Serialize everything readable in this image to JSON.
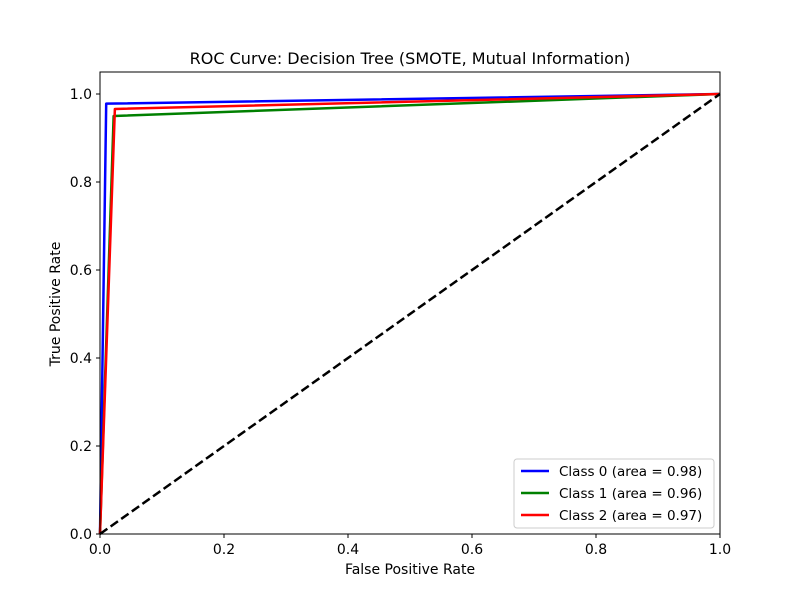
{
  "chart_data": {
    "type": "line",
    "title": "ROC Curve: Decision Tree (SMOTE, Mutual Information)",
    "xlabel": "False Positive Rate",
    "ylabel": "True Positive Rate",
    "xlim": [
      0.0,
      1.0
    ],
    "ylim": [
      0.0,
      1.05
    ],
    "x_ticks": [
      "0.0",
      "0.2",
      "0.4",
      "0.6",
      "0.8",
      "1.0"
    ],
    "y_ticks": [
      "0.0",
      "0.2",
      "0.4",
      "0.6",
      "0.8",
      "1.0"
    ],
    "grid": false,
    "legend_position": "lower-right",
    "series": [
      {
        "name": "Class 0 (area = 0.98)",
        "color": "#0000ff",
        "x": [
          0.0,
          0.01,
          1.0
        ],
        "y": [
          0.0,
          0.978,
          1.0
        ]
      },
      {
        "name": "Class 1 (area = 0.96)",
        "color": "#008000",
        "x": [
          0.0,
          0.022,
          1.0
        ],
        "y": [
          0.0,
          0.95,
          1.0
        ]
      },
      {
        "name": "Class 2 (area = 0.97)",
        "color": "#ff0000",
        "x": [
          0.0,
          0.024,
          1.0
        ],
        "y": [
          0.0,
          0.966,
          1.0
        ]
      }
    ],
    "reference_line": {
      "color": "#000000",
      "x": [
        0.0,
        1.0
      ],
      "y": [
        0.0,
        1.0
      ],
      "style": "dashed"
    }
  }
}
